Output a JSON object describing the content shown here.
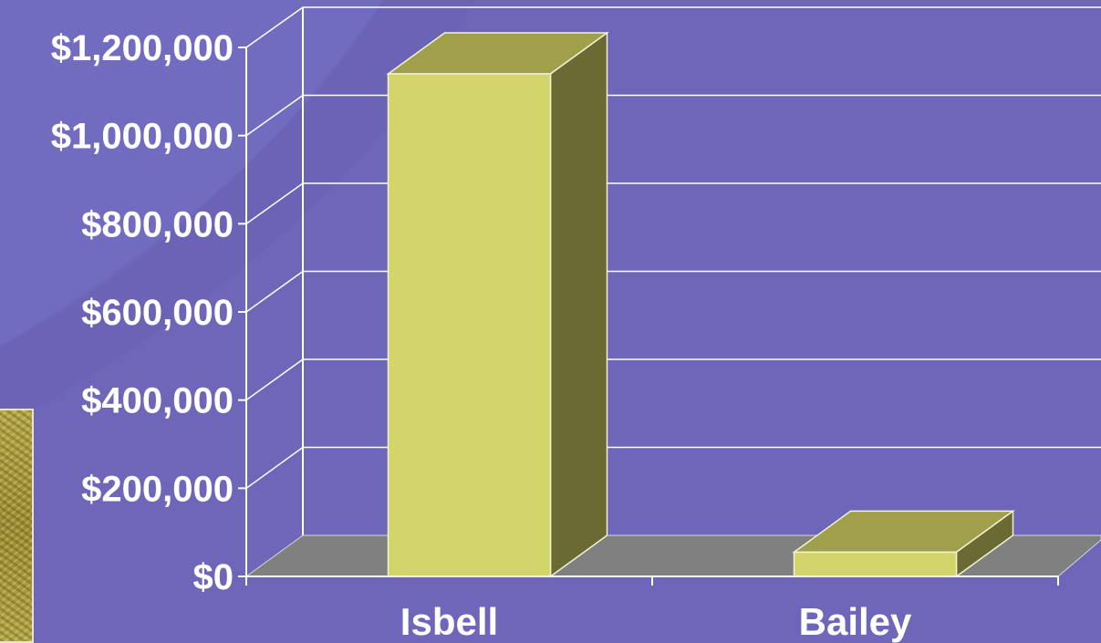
{
  "chart_data": {
    "type": "bar",
    "style": "3d-column",
    "categories": [
      "Isbell",
      "Bailey"
    ],
    "values": [
      1140000,
      55000
    ],
    "title": "",
    "xlabel": "",
    "ylabel": "",
    "ylim": [
      0,
      1200000
    ],
    "yticks": [
      0,
      200000,
      400000,
      600000,
      800000,
      1000000,
      1200000
    ],
    "ytick_labels": [
      "$0",
      "$200,000",
      "$400,000",
      "$600,000",
      "$800,000",
      "$1,000,000",
      "$1,200,000"
    ],
    "grid": true,
    "legend": "none",
    "colors": {
      "background": "#6d66b9",
      "bar_front": "#d3d56a",
      "bar_top": "#a0a04a",
      "bar_side": "#6a6a32",
      "floor": "#808080",
      "grid": "#ffffff"
    }
  }
}
